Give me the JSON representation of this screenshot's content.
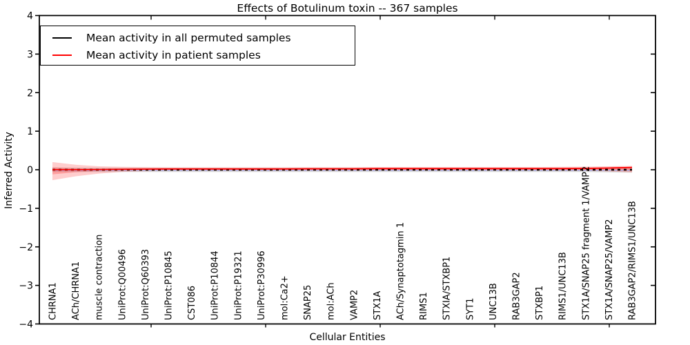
{
  "title": "Effects of Botulinum toxin -- 367 samples",
  "axes": {
    "ylabel": "Inferred Activity",
    "xlabel": "Cellular Entities",
    "ytick_labels": [
      "4",
      "3",
      "2",
      "1",
      "0",
      "−1",
      "−2",
      "−3",
      "−4"
    ],
    "ytick_values": [
      4,
      3,
      2,
      1,
      0,
      -1,
      -2,
      -3,
      -4
    ],
    "ylim": [
      -4,
      4
    ]
  },
  "legend": {
    "items": [
      {
        "label": "Mean activity in all permuted samples",
        "color": "#000000"
      },
      {
        "label": "Mean activity in patient samples",
        "color": "#ff0000"
      }
    ]
  },
  "chart_data": {
    "type": "line",
    "title": "Effects of Botulinum toxin -- 367 samples",
    "xlabel": "Cellular Entities",
    "ylabel": "Inferred Activity",
    "ylim": [
      -4,
      4
    ],
    "grid": false,
    "legend_position": "upper left",
    "categories": [
      "CHRNA1",
      "ACh/CHRNA1",
      "muscle contraction",
      "UniProt:Q00496",
      "UniProt:Q60393",
      "UniProt:P10845",
      "CST086",
      "UniProt:P10844",
      "UniProt:P19321",
      "UniProt:P30996",
      "mol:Ca2+",
      "SNAP25",
      "mol:ACh",
      "VAMP2",
      "STX1A",
      "ACh/Synaptotagmin 1",
      "RIMS1",
      "STXIA/STXBP1",
      "SYT1",
      "UNC13B",
      "RAB3GAP2",
      "STXBP1",
      "RIMS1/UNC13B",
      "STX1A/SNAP25 fragment 1/VAMP2",
      "STX1A/SNAP25/VAMP2",
      "RAB3GAP2/RIMS1/UNC13B"
    ],
    "series": [
      {
        "name": "Mean activity in all permuted samples",
        "color": "#000000",
        "style": "dotted",
        "values": [
          0,
          0,
          0,
          0,
          0,
          0,
          0,
          0,
          0,
          0,
          0,
          0,
          0,
          0,
          0,
          0,
          0,
          0,
          0,
          0,
          0,
          0,
          0,
          0,
          0,
          0
        ]
      },
      {
        "name": "Mean activity in patient samples",
        "color": "#ff0000",
        "style": "solid",
        "values": [
          0.0,
          0.0,
          0.005,
          0.01,
          0.015,
          0.02,
          0.02,
          0.02,
          0.02,
          0.02,
          0.02,
          0.025,
          0.025,
          0.025,
          0.03,
          0.03,
          0.03,
          0.03,
          0.03,
          0.03,
          0.03,
          0.03,
          0.03,
          0.035,
          0.045,
          0.06
        ]
      }
    ],
    "bands": [
      {
        "name": "permuted-samples-spread",
        "color": "#9e9e9e",
        "opacity": 0.35,
        "upper": [
          0.055,
          0.055,
          0.055,
          0.055,
          0.055,
          0.055,
          0.055,
          0.055,
          0.055,
          0.055,
          0.055,
          0.055,
          0.055,
          0.055,
          0.055,
          0.055,
          0.055,
          0.055,
          0.055,
          0.055,
          0.055,
          0.055,
          0.055,
          0.055,
          0.065,
          0.07
        ],
        "lower": [
          -0.06,
          -0.06,
          -0.06,
          -0.06,
          -0.06,
          -0.06,
          -0.06,
          -0.06,
          -0.06,
          -0.06,
          -0.06,
          -0.06,
          -0.06,
          -0.06,
          -0.06,
          -0.06,
          -0.06,
          -0.06,
          -0.06,
          -0.06,
          -0.06,
          -0.06,
          -0.06,
          -0.06,
          -0.07,
          -0.075
        ]
      },
      {
        "name": "patient-samples-spread-outer",
        "color": "#ff3c3c",
        "opacity": 0.26,
        "upper": [
          0.2,
          0.13,
          0.09,
          0.075,
          0.07,
          0.065,
          0.065,
          0.065,
          0.065,
          0.065,
          0.065,
          0.065,
          0.065,
          0.065,
          0.07,
          0.07,
          0.07,
          0.07,
          0.07,
          0.07,
          0.07,
          0.07,
          0.075,
          0.08,
          0.09,
          0.1
        ],
        "lower": [
          -0.27,
          -0.17,
          -0.1,
          -0.055,
          -0.04,
          -0.03,
          -0.03,
          -0.03,
          -0.03,
          -0.03,
          -0.03,
          -0.03,
          -0.03,
          -0.03,
          -0.025,
          -0.025,
          -0.025,
          -0.025,
          -0.025,
          -0.025,
          -0.025,
          -0.025,
          -0.03,
          -0.03,
          -0.045,
          -0.07
        ]
      },
      {
        "name": "patient-samples-spread-inner",
        "color": "#ff3c3c",
        "opacity": 0.3,
        "upper": [
          0.065,
          0.04,
          0.03,
          0.028,
          0.028,
          0.028,
          0.028,
          0.028,
          0.028,
          0.028,
          0.028,
          0.028,
          0.028,
          0.028,
          0.03,
          0.03,
          0.03,
          0.03,
          0.03,
          0.03,
          0.03,
          0.03,
          0.032,
          0.035,
          0.04,
          0.05
        ],
        "lower": [
          -0.12,
          -0.065,
          -0.035,
          -0.02,
          -0.015,
          -0.012,
          -0.012,
          -0.012,
          -0.012,
          -0.012,
          -0.012,
          -0.012,
          -0.012,
          -0.012,
          -0.01,
          -0.01,
          -0.01,
          -0.01,
          -0.01,
          -0.01,
          -0.01,
          -0.01,
          -0.012,
          -0.015,
          -0.025,
          -0.04
        ]
      }
    ],
    "baseline": {
      "y": 0,
      "color": "#9fb0e8",
      "style": "dashed"
    }
  }
}
